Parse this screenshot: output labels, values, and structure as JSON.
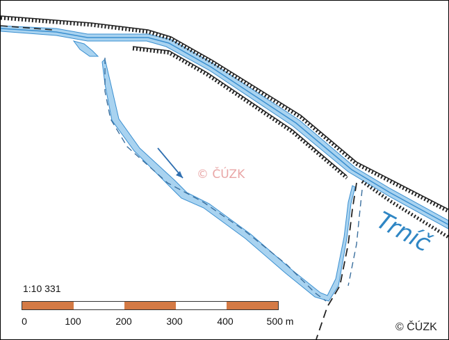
{
  "map": {
    "watermark": "© ČÚZK",
    "river_label": "Trníč",
    "copyright": "© ČÚZK",
    "colors": {
      "water": "#a9d3f0",
      "water_line": "#3a8fd0",
      "road": "#222222",
      "scale_fill": "#d47a45"
    },
    "icons": [
      "flow-direction-arrow-icon"
    ]
  },
  "scale": {
    "ratio": "1:10 331",
    "segments": [
      "fill",
      "blank",
      "fill",
      "blank",
      "fill"
    ],
    "ticks": [
      "0",
      "100",
      "200",
      "300",
      "400",
      "500 m"
    ]
  }
}
